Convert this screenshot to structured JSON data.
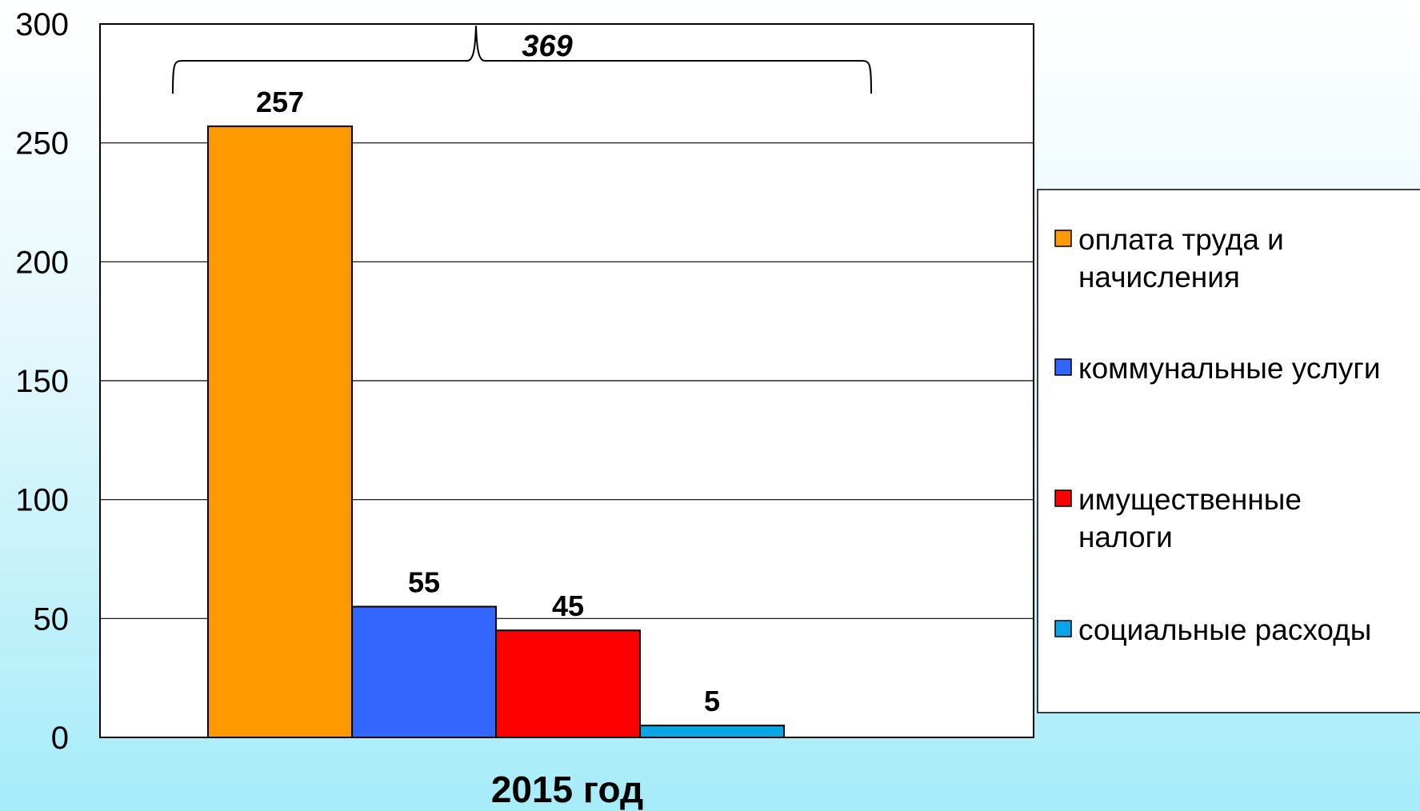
{
  "chart_data": {
    "type": "bar",
    "categories": [
      "2015 год"
    ],
    "series": [
      {
        "name": "оплата труда и начисления",
        "values": [
          257
        ],
        "color": "#FF9900"
      },
      {
        "name": "коммунальные услуги",
        "values": [
          55
        ],
        "color": "#3366FF"
      },
      {
        "name": "имущественные налоги",
        "values": [
          45
        ],
        "color": "#FF0000"
      },
      {
        "name": "социальные расходы",
        "values": [
          5
        ],
        "color": "#0AA5E6"
      }
    ],
    "total_annotation": "369",
    "ylim": [
      0,
      300
    ],
    "yticks": [
      "0",
      "50",
      "100",
      "150",
      "200",
      "250",
      "300"
    ],
    "grid": true,
    "legend_position": "right"
  }
}
